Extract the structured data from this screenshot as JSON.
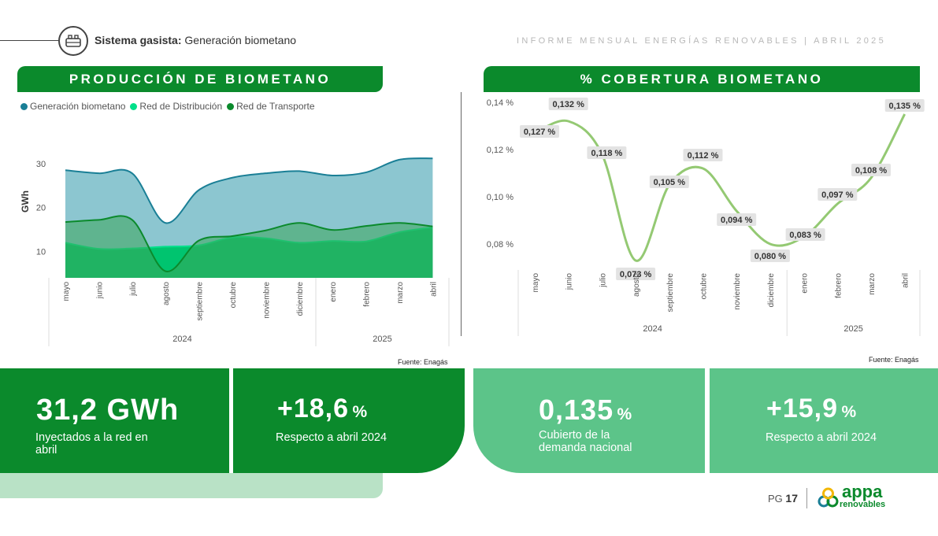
{
  "header": {
    "section_bold": "Sistema gasista:",
    "section_rest": "Generación biometano",
    "report": "INFORME MENSUAL ENERGÍAS RENOVABLES | ABRIL 2025"
  },
  "left_banner": "PRODUCCIÓN DE BIOMETANO",
  "right_banner": "% COBERTURA BIOMETANO",
  "colors": {
    "generacion": "#1a7f96",
    "distribucion": "#00e08a",
    "transporte": "#0b8a2c",
    "cobertura_line": "#94c973",
    "brand_green": "#0b8a2c",
    "light_green": "#5cc489"
  },
  "chart_data": [
    {
      "type": "area",
      "title": "PRODUCCIÓN DE BIOMETANO",
      "ylabel": "GWh",
      "ylim": [
        4,
        35
      ],
      "yticks": [
        "10",
        "20",
        "30"
      ],
      "categories": [
        "mayo",
        "junio",
        "julio",
        "agosto",
        "septiembre",
        "octubre",
        "noviembre",
        "diciembre",
        "enero",
        "febrero",
        "marzo",
        "abril"
      ],
      "year_groups": [
        {
          "label": "2024",
          "span": 8
        },
        {
          "label": "2025",
          "span": 4
        }
      ],
      "series": [
        {
          "name": "Generación biometano",
          "values": [
            28.5,
            27.8,
            27.8,
            16.5,
            24.0,
            26.8,
            27.8,
            28.3,
            27.3,
            28.0,
            30.9,
            31.2
          ]
        },
        {
          "name": "Red de Distribución",
          "values": [
            12.0,
            10.6,
            10.7,
            11.1,
            11.4,
            13.2,
            13.0,
            12.0,
            12.4,
            12.3,
            14.4,
            15.5
          ]
        },
        {
          "name": "Red de Transporte",
          "values": [
            16.7,
            17.2,
            17.2,
            5.5,
            12.5,
            13.5,
            14.8,
            16.5,
            14.9,
            15.8,
            16.5,
            15.7
          ]
        }
      ],
      "source": "Fuente: Enagás"
    },
    {
      "type": "line",
      "title": "% COBERTURA BIOMETANO",
      "ylim": [
        0.07,
        0.14
      ],
      "yticks": [
        "0,08 %",
        "0,10 %",
        "0,12 %",
        "0,14 %"
      ],
      "categories": [
        "mayo",
        "junio",
        "julio",
        "agosto",
        "septiembre",
        "octubre",
        "noviembre",
        "diciembre",
        "enero",
        "febrero",
        "marzo",
        "abril"
      ],
      "year_groups": [
        {
          "label": "2024",
          "span": 8
        },
        {
          "label": "2025",
          "span": 4
        }
      ],
      "series": [
        {
          "name": "% Cobertura",
          "values": [
            0.127,
            0.132,
            0.118,
            0.073,
            0.105,
            0.112,
            0.094,
            0.08,
            0.083,
            0.097,
            0.108,
            0.135
          ]
        }
      ],
      "labels": [
        "0,127 %",
        "0,132 %",
        "0,118 %",
        "0,073 %",
        "0,105 %",
        "0,112 %",
        "0,094 %",
        "0,080 %",
        "0,083 %",
        "0,097 %",
        "0,108 %",
        "0,135 %"
      ],
      "source": "Fuente: Enagás"
    }
  ],
  "kpis": [
    {
      "value": "31,2 GWh",
      "unit": "",
      "caption": "Inyectados a la red en abril"
    },
    {
      "value": "+18,6",
      "unit": "%",
      "caption": "Respecto a abril 2024"
    },
    {
      "value": "0,135",
      "unit": "%",
      "caption": "Cubierto de la demanda nacional"
    },
    {
      "value": "+15,9",
      "unit": "%",
      "caption": "Respecto a abril 2024"
    }
  ],
  "footer": {
    "pg_label": "PG",
    "pg_number": "17",
    "logo": "appa",
    "logo_sub": "renovables"
  }
}
